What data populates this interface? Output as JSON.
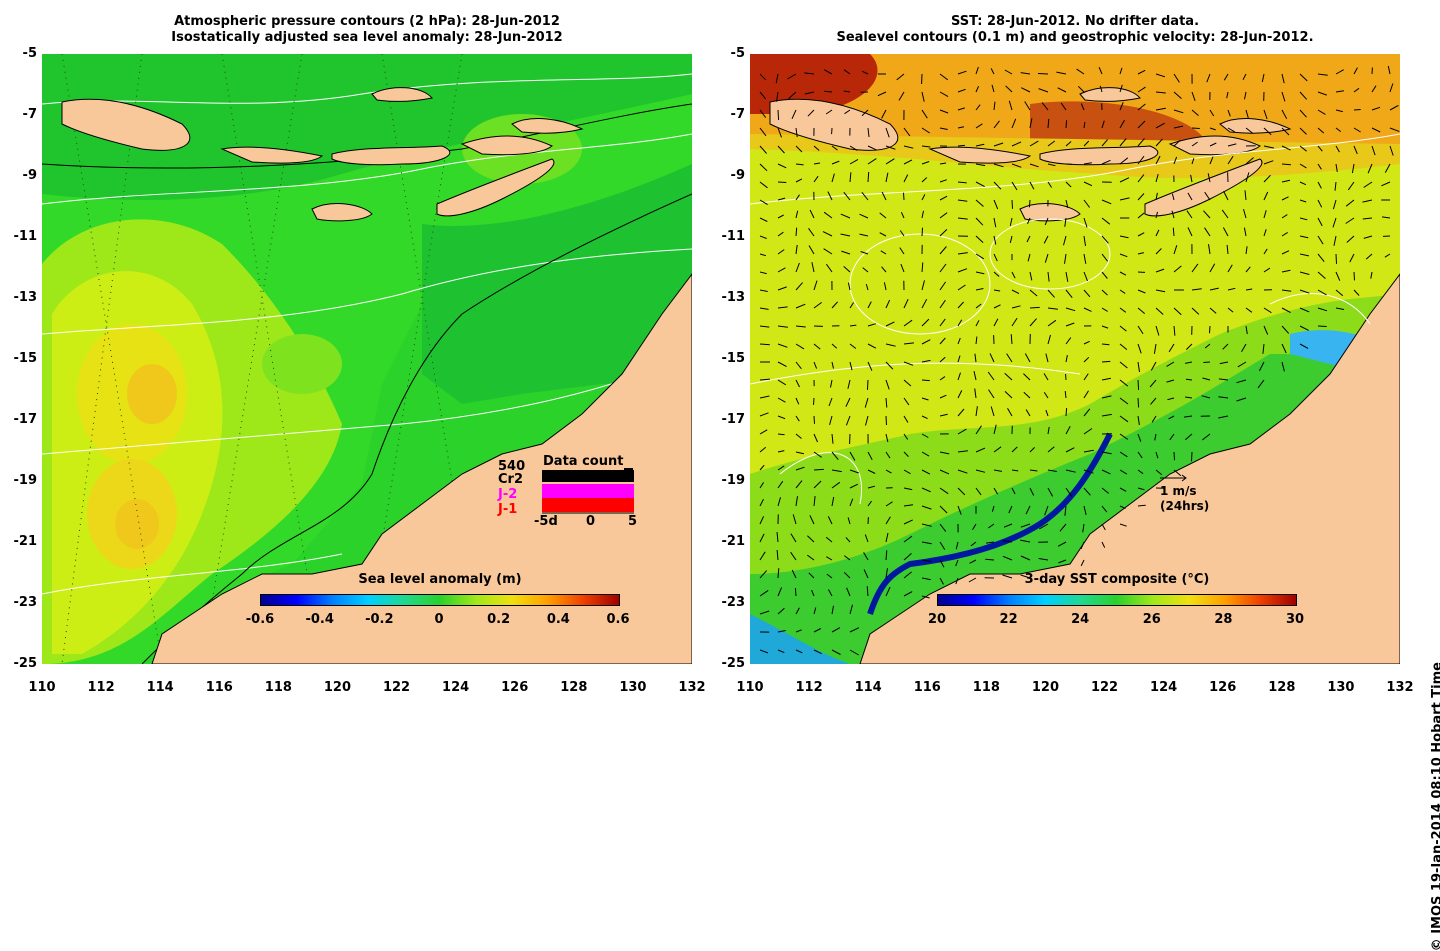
{
  "left_panel": {
    "title_line1": "Atmospheric pressure contours (2 hPa): 28-Jun-2012",
    "title_line2": "Isostatically adjusted sea level anomaly: 28-Jun-2012",
    "colorbar_title": "Sea level anomaly (m)",
    "colorbar_ticks": [
      "-0.6",
      "-0.4",
      "-0.2",
      "0",
      "0.2",
      "0.4",
      "0.6"
    ],
    "data_count": {
      "title": "Data count",
      "max_label": "540",
      "series": [
        "Cr2",
        "J-2",
        "J-1"
      ],
      "series_colors": [
        "#000000",
        "#ff00ff",
        "#ff0000"
      ],
      "x_ticks": [
        "-5d",
        "0",
        "5"
      ]
    }
  },
  "right_panel": {
    "title_line1": "SST: 28-Jun-2012. No drifter data.",
    "title_line2": "Sealevel contours (0.1 m) and geostrophic velocity: 28-Jun-2012.",
    "colorbar_title": "3-day SST composite (°C)",
    "colorbar_ticks": [
      "20",
      "22",
      "24",
      "26",
      "28",
      "30"
    ],
    "velocity_scale": "1 m/s",
    "velocity_scale_note": "(24hrs)"
  },
  "axes": {
    "lat_ticks": [
      "-5",
      "-7",
      "-9",
      "-11",
      "-13",
      "-15",
      "-17",
      "-19",
      "-21",
      "-23",
      "-25"
    ],
    "lon_ticks": [
      "110",
      "112",
      "114",
      "116",
      "118",
      "120",
      "122",
      "124",
      "126",
      "128",
      "130",
      "132"
    ]
  },
  "credit": "© IMOS 19-Jan-2014 08:10 Hobart Time",
  "colors": {
    "land": "#f9c89a",
    "sla_base": "#2bd32b",
    "sst_base": "#d9e817"
  }
}
